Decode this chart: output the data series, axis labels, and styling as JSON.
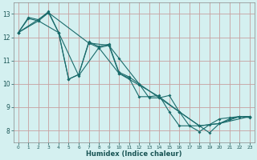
{
  "xlabel": "Humidex (Indice chaleur)",
  "bg_color": "#d4f0f0",
  "grid_color_major": "#c8a0a0",
  "grid_color_minor": "#ddc0c0",
  "line_color": "#1a6b6b",
  "xlim": [
    -0.5,
    23.5
  ],
  "ylim": [
    7.5,
    13.5
  ],
  "xticks": [
    0,
    1,
    2,
    3,
    4,
    5,
    6,
    7,
    8,
    9,
    10,
    11,
    12,
    13,
    14,
    15,
    16,
    17,
    18,
    19,
    20,
    21,
    22,
    23
  ],
  "yticks": [
    8,
    9,
    10,
    11,
    12,
    13
  ],
  "series1": [
    [
      0,
      12.2
    ],
    [
      1,
      12.85
    ],
    [
      2,
      12.75
    ],
    [
      3,
      13.1
    ],
    [
      4,
      12.2
    ],
    [
      5,
      10.2
    ],
    [
      6,
      10.4
    ],
    [
      7,
      11.8
    ],
    [
      8,
      11.6
    ],
    [
      9,
      11.7
    ],
    [
      10,
      10.5
    ],
    [
      11,
      10.3
    ],
    [
      12,
      10.0
    ],
    [
      13,
      9.4
    ],
    [
      14,
      9.4
    ],
    [
      15,
      9.5
    ],
    [
      16,
      8.8
    ],
    [
      17,
      8.2
    ],
    [
      18,
      8.2
    ],
    [
      19,
      7.9
    ],
    [
      20,
      8.3
    ],
    [
      21,
      8.5
    ],
    [
      22,
      8.6
    ],
    [
      23,
      8.6
    ]
  ],
  "series2": [
    [
      0,
      12.2
    ],
    [
      1,
      12.8
    ],
    [
      2,
      12.7
    ],
    [
      3,
      13.05
    ],
    [
      4,
      12.2
    ],
    [
      5,
      10.2
    ],
    [
      6,
      10.4
    ],
    [
      7,
      11.75
    ],
    [
      8,
      11.55
    ],
    [
      9,
      11.65
    ],
    [
      10,
      10.45
    ],
    [
      11,
      10.25
    ],
    [
      12,
      9.45
    ],
    [
      13,
      9.45
    ],
    [
      14,
      9.5
    ],
    [
      15,
      8.8
    ],
    [
      16,
      8.2
    ],
    [
      17,
      8.2
    ],
    [
      18,
      7.95
    ],
    [
      19,
      8.25
    ],
    [
      20,
      8.5
    ],
    [
      21,
      8.55
    ],
    [
      22,
      8.6
    ],
    [
      23,
      8.55
    ]
  ],
  "series3": [
    [
      0,
      12.2
    ],
    [
      3,
      13.05
    ],
    [
      7,
      11.75
    ],
    [
      9,
      11.65
    ],
    [
      10,
      11.1
    ],
    [
      12,
      10.0
    ],
    [
      14,
      9.4
    ],
    [
      16,
      8.8
    ],
    [
      18,
      8.2
    ],
    [
      20,
      8.3
    ],
    [
      23,
      8.6
    ]
  ],
  "series4": [
    [
      0,
      12.2
    ],
    [
      2,
      12.7
    ],
    [
      4,
      12.2
    ],
    [
      6,
      10.35
    ],
    [
      8,
      11.55
    ],
    [
      10,
      10.45
    ],
    [
      12,
      9.95
    ],
    [
      14,
      9.45
    ],
    [
      16,
      8.8
    ],
    [
      18,
      8.2
    ],
    [
      20,
      8.3
    ],
    [
      22,
      8.6
    ],
    [
      23,
      8.6
    ]
  ]
}
